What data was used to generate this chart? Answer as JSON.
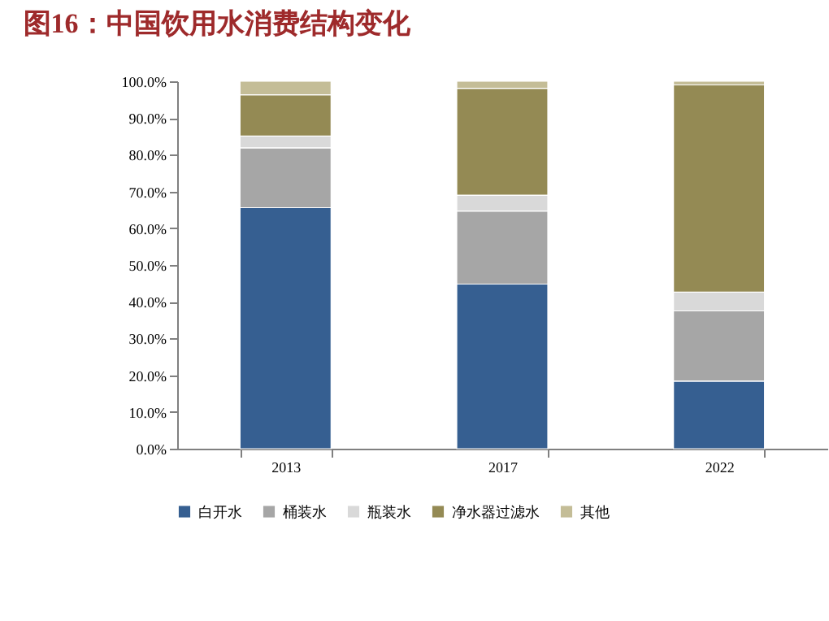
{
  "chart_data": {
    "type": "bar",
    "title": "图16：中国饮用水消费结构变化",
    "stacked": true,
    "categories": [
      "2013",
      "2017",
      "2022"
    ],
    "series": [
      {
        "name": "白开水",
        "color": "#365f91",
        "values": [
          65.6,
          44.8,
          18.4
        ]
      },
      {
        "name": "桶装水",
        "color": "#a6a6a6",
        "values": [
          16.3,
          19.9,
          19.1
        ]
      },
      {
        "name": "瓶装水",
        "color": "#d9d9d9",
        "values": [
          3.2,
          4.3,
          5.1
        ]
      },
      {
        "name": "净水器过滤水",
        "color": "#948a54",
        "values": [
          11.2,
          29.1,
          56.4
        ]
      },
      {
        "name": "其他",
        "color": "#c4bd97",
        "values": [
          3.7,
          1.9,
          1.0
        ]
      }
    ],
    "ylim": [
      0,
      100
    ],
    "yticks": [
      {
        "value": 0,
        "label": "0.0%"
      },
      {
        "value": 10,
        "label": "10.0%"
      },
      {
        "value": 20,
        "label": "20.0%"
      },
      {
        "value": 30,
        "label": "30.0%"
      },
      {
        "value": 40,
        "label": "40.0%"
      },
      {
        "value": 50,
        "label": "50.0%"
      },
      {
        "value": 60,
        "label": "60.0%"
      },
      {
        "value": 70,
        "label": "70.0%"
      },
      {
        "value": 80,
        "label": "80.0%"
      },
      {
        "value": 90,
        "label": "90.0%"
      },
      {
        "value": 100,
        "label": "100.0%"
      }
    ],
    "grid": false,
    "legend": "bottom"
  }
}
